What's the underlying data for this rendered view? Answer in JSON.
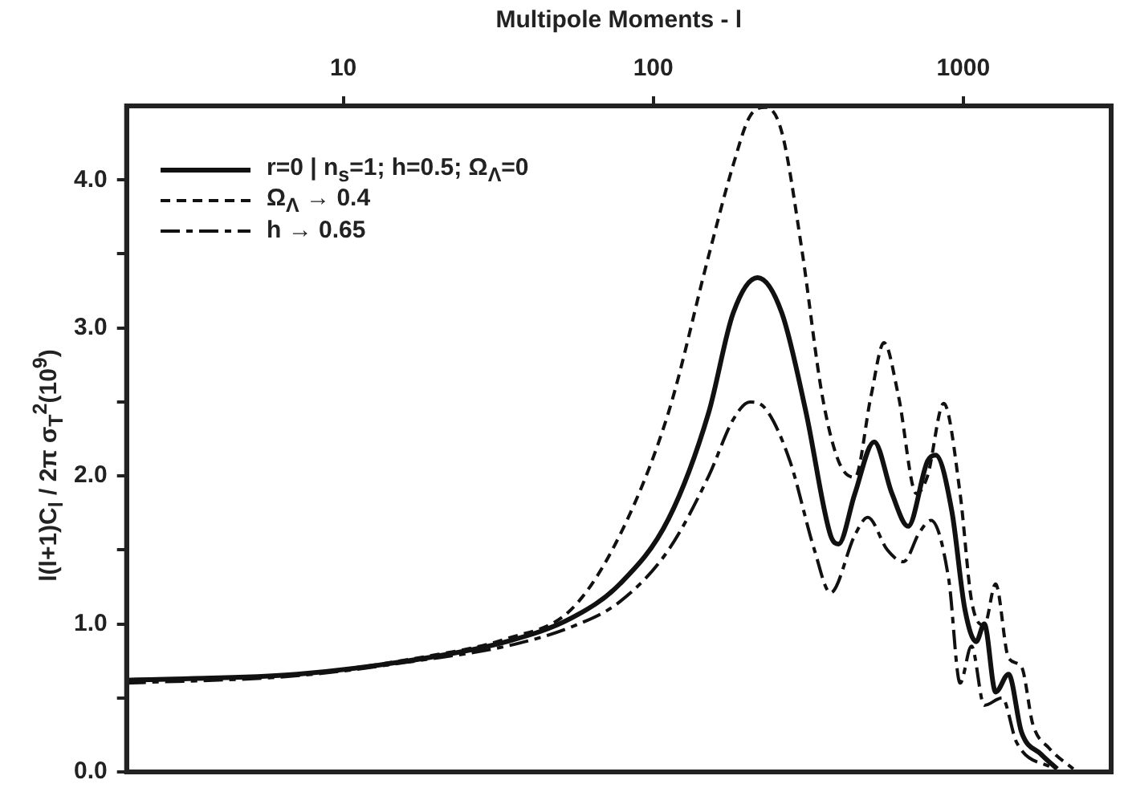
{
  "chart_data": {
    "type": "line",
    "xlabel": "Multipole Moments - l",
    "ylabel": "l(l+1)C$_{l}$ / 2π σ$_{T}$$^{2}$(10$^{9}$)",
    "log": "x",
    "xlim": [
      2,
      3000
    ],
    "xticks": [
      10,
      100,
      1000
    ],
    "ylim": [
      0,
      4.5
    ],
    "yticks": [
      {
        "value": 0,
        "label": "0.0"
      },
      {
        "value": 0.5,
        "label": null
      },
      {
        "value": 1,
        "label": "1.0"
      },
      {
        "value": 1.5,
        "label": null
      },
      {
        "value": 2,
        "label": "2.0"
      },
      {
        "value": 2.5,
        "label": null
      },
      {
        "value": 3,
        "label": "3.0"
      },
      {
        "value": 3.5,
        "label": null
      },
      {
        "value": 4,
        "label": "4.0"
      }
    ],
    "grid": false,
    "legend": "top left",
    "marker": "none",
    "series": [
      {
        "name": "r=0 | n$_{s}$=1; h=0.5; Ω$_{Λ}$=0",
        "color": "#111111",
        "line_style": "solid",
        "x": [
          2,
          7.1,
          18.5,
          33.6,
          54.5,
          78,
          112,
          151,
          181,
          217,
          260,
          311,
          373,
          396,
          447,
          516,
          589,
          664,
          767,
          815,
          919,
          1012,
          1101,
          1169,
          1272,
          1400,
          1541,
          1781,
          2009
        ],
        "values": [
          0.62,
          0.66,
          0.77,
          0.88,
          1.04,
          1.27,
          1.71,
          2.43,
          3.1,
          3.34,
          3.1,
          2.43,
          1.6,
          1.54,
          1.88,
          2.23,
          1.88,
          1.66,
          2.1,
          2.14,
          1.76,
          1.1,
          0.88,
          1.0,
          0.54,
          0.66,
          0.27,
          0.12,
          0.02
        ]
      },
      {
        "name": "Ω$_{Λ}$ → 0.4",
        "color": "#111111",
        "line_style": "dashed",
        "x": [
          2,
          7.1,
          18.5,
          33.6,
          54.5,
          78,
          112,
          151,
          181,
          205,
          231,
          260,
          301,
          351,
          396,
          447,
          504,
          555,
          618,
          706,
          767,
          865,
          977,
          1063,
          1169,
          1272,
          1400,
          1541,
          1678,
          1893,
          2265
        ],
        "values": [
          0.62,
          0.66,
          0.78,
          0.9,
          1.1,
          1.6,
          2.43,
          3.49,
          4.1,
          4.43,
          4.49,
          4.32,
          3.54,
          2.54,
          2.1,
          1.99,
          2.54,
          2.9,
          2.54,
          1.88,
          2.0,
          2.49,
          1.88,
          1.16,
          0.99,
          1.27,
          0.77,
          0.71,
          0.32,
          0.16,
          0.02
        ]
      },
      {
        "name": "h → 0.65",
        "color": "#111111",
        "line_style": "dashdot",
        "x": [
          2,
          7.1,
          18.5,
          33.6,
          54.5,
          78,
          112,
          151,
          181,
          205,
          231,
          276,
          331,
          373,
          447,
          492,
          569,
          641,
          723,
          787,
          898,
          977,
          1063,
          1169,
          1335,
          1486,
          1959
        ],
        "values": [
          0.6,
          0.65,
          0.76,
          0.85,
          0.98,
          1.15,
          1.5,
          2.0,
          2.38,
          2.5,
          2.45,
          2.1,
          1.5,
          1.21,
          1.6,
          1.72,
          1.5,
          1.42,
          1.62,
          1.7,
          1.3,
          0.6,
          0.85,
          0.45,
          0.5,
          0.2,
          0.02
        ]
      }
    ]
  }
}
